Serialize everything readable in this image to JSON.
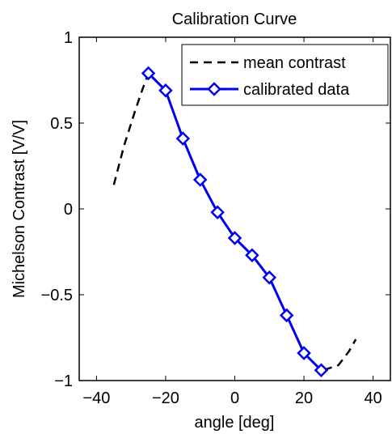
{
  "chart_data": {
    "type": "line",
    "title": "Calibration Curve",
    "xlabel": "angle [deg]",
    "ylabel": "Michelson Contrast [V/V]",
    "xlim": [
      -45,
      45
    ],
    "ylim": [
      -1,
      1
    ],
    "xticks": [
      -40,
      -20,
      0,
      20,
      40
    ],
    "xtick_labels": [
      "−40",
      "−20",
      "0",
      "20",
      "40"
    ],
    "yticks": [
      -1,
      -0.5,
      0,
      0.5,
      1
    ],
    "ytick_labels": [
      "−1",
      "−0.5",
      "0",
      "0.5",
      "1"
    ],
    "grid": false,
    "legend_position": "top-right",
    "series": [
      {
        "name": "mean contrast",
        "style": "dashed",
        "color": "#000000",
        "marker": "none",
        "x": [
          -35,
          -32,
          -29,
          -27,
          -25,
          -20,
          -15,
          -10,
          -5,
          0,
          5,
          10,
          15,
          20,
          25,
          27,
          30,
          33,
          35
        ],
        "y": [
          0.14,
          0.37,
          0.56,
          0.68,
          0.79,
          0.69,
          0.41,
          0.17,
          -0.02,
          -0.17,
          -0.27,
          -0.4,
          -0.62,
          -0.84,
          -0.94,
          -0.93,
          -0.91,
          -0.83,
          -0.76
        ]
      },
      {
        "name": "calibrated data",
        "style": "solid",
        "color": "#0000ee",
        "marker": "diamond",
        "x": [
          -25,
          -20,
          -15,
          -10,
          -5,
          0,
          5,
          10,
          15,
          20,
          25
        ],
        "y": [
          0.79,
          0.69,
          0.41,
          0.17,
          -0.02,
          -0.17,
          -0.27,
          -0.4,
          -0.62,
          -0.84,
          -0.94
        ]
      }
    ]
  }
}
